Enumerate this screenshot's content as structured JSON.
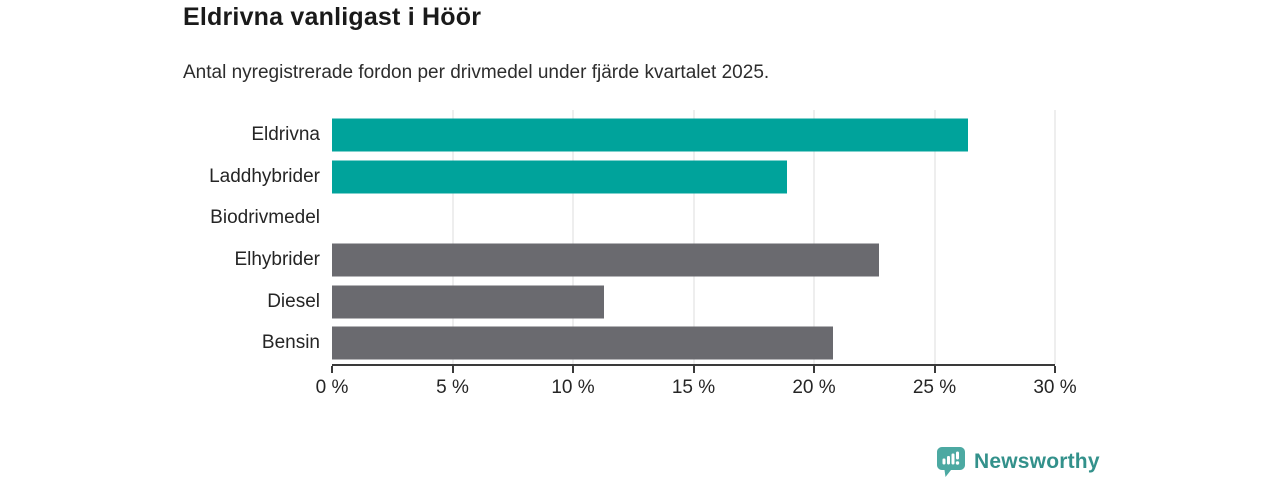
{
  "header": {
    "title": "Eldrivna vanligast i Höör",
    "subtitle": "Antal nyregistrerade fordon per drivmedel under fjärde kvartalet 2025."
  },
  "chart_data": {
    "type": "bar",
    "orientation": "horizontal",
    "title": "Eldrivna vanligast i Höör",
    "subtitle": "Antal nyregistrerade fordon per drivmedel under fjärde kvartalet 2025.",
    "categories": [
      "Eldrivna",
      "Laddhybrider",
      "Biodrivmedel",
      "Elhybrider",
      "Diesel",
      "Bensin"
    ],
    "values": [
      26.4,
      18.9,
      0,
      22.7,
      11.3,
      20.8
    ],
    "unit": "%",
    "colors": [
      "#00A39B",
      "#00A39B",
      "#6A6A6F",
      "#6A6A6F",
      "#6A6A6F",
      "#6A6A6F"
    ],
    "xlabel": "",
    "ylabel": "",
    "xlim": [
      0,
      30
    ],
    "x_ticks": [
      {
        "value": 0,
        "label": "0 %"
      },
      {
        "value": 5,
        "label": "5 %"
      },
      {
        "value": 10,
        "label": "10 %"
      },
      {
        "value": 15,
        "label": "15 %"
      },
      {
        "value": 20,
        "label": "20 %"
      },
      {
        "value": 25,
        "label": "25 %"
      },
      {
        "value": 30,
        "label": "30 %"
      }
    ],
    "grid": "vertical-only",
    "legend": "none"
  },
  "footer": {
    "brand": "Newsworthy"
  },
  "colors": {
    "bar_teal": "#00A39B",
    "bar_gray": "#6A6A6F",
    "logo_icon_teal": "#4CA9A2",
    "logo_text_teal": "#33918B",
    "axis_line": "#3A3A3A",
    "gridline": "#DEDEDE",
    "text_dark": "#1A1A1A",
    "text_body": "#2D2D2D",
    "label_text": "#252525"
  }
}
